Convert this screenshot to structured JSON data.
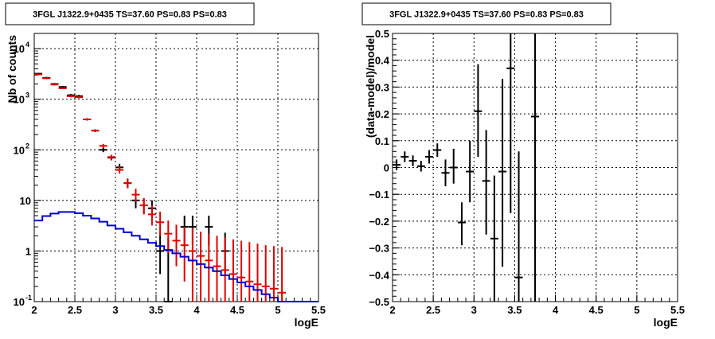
{
  "chart_data": [
    {
      "type": "scatter",
      "title": "3FGL J1322.9+0435 TS=37.60 PS=0.83 PS=0.83",
      "xlabel": "logE",
      "ylabel": "Nb of counts",
      "xlim": [
        2,
        5.5
      ],
      "ylim": [
        0.1,
        20000
      ],
      "yscale": "log",
      "grid": true,
      "xticks": [
        {
          "v": 2,
          "label": "2"
        },
        {
          "v": 2.5,
          "label": "2.5"
        },
        {
          "v": 3,
          "label": "3"
        },
        {
          "v": 3.5,
          "label": "3.5"
        },
        {
          "v": 4,
          "label": "4"
        },
        {
          "v": 4.5,
          "label": "4.5"
        },
        {
          "v": 5,
          "label": "5"
        },
        {
          "v": 5.5,
          "label": "5.5"
        }
      ],
      "yticks": [
        {
          "v": 0.1,
          "label": "10",
          "exp": "-1"
        },
        {
          "v": 1,
          "label": "1",
          "exp": ""
        },
        {
          "v": 10,
          "label": "10",
          "exp": ""
        },
        {
          "v": 100,
          "label": "10",
          "exp": "2"
        },
        {
          "v": 1000,
          "label": "10",
          "exp": "3"
        },
        {
          "v": 10000,
          "label": "10",
          "exp": "4"
        }
      ],
      "series": [
        {
          "color": "#000000",
          "kind": "errorbars",
          "points": [
            {
              "x": 2.05,
              "y": 3200,
              "lo": 3090,
              "hi": 3310
            },
            {
              "x": 2.15,
              "y": 2650,
              "lo": 2550,
              "hi": 2750
            },
            {
              "x": 2.25,
              "y": 2000,
              "lo": 1910,
              "hi": 2090
            },
            {
              "x": 2.35,
              "y": 1750,
              "lo": 1670,
              "hi": 1830
            },
            {
              "x": 2.45,
              "y": 1200,
              "lo": 1130,
              "hi": 1270
            },
            {
              "x": 2.55,
              "y": 1150,
              "lo": 1080,
              "hi": 1220
            },
            {
              "x": 2.65,
              "y": 400,
              "lo": 380,
              "hi": 420
            },
            {
              "x": 2.75,
              "y": 240,
              "lo": 225,
              "hi": 255
            },
            {
              "x": 2.85,
              "y": 100,
              "lo": 90,
              "hi": 110
            },
            {
              "x": 2.95,
              "y": 70,
              "lo": 62,
              "hi": 78
            },
            {
              "x": 3.05,
              "y": 45,
              "lo": 38,
              "hi": 53
            },
            {
              "x": 3.15,
              "y": 22,
              "lo": 17.5,
              "hi": 27
            },
            {
              "x": 3.25,
              "y": 10,
              "lo": 7,
              "hi": 13.5
            },
            {
              "x": 3.35,
              "y": 8,
              "lo": 5.5,
              "hi": 11
            },
            {
              "x": 3.45,
              "y": 7,
              "lo": 4.5,
              "hi": 10
            },
            {
              "x": 3.55,
              "y": 1,
              "lo": 0.35,
              "hi": 2.3
            },
            {
              "x": 3.65,
              "y": 0.1,
              "lo": 0.1,
              "hi": 1.8
            },
            {
              "x": 3.85,
              "y": 3,
              "lo": 1.3,
              "hi": 5
            },
            {
              "x": 3.95,
              "y": 3,
              "lo": 1.3,
              "hi": 5
            },
            {
              "x": 4.15,
              "y": 3,
              "lo": 1.3,
              "hi": 5
            },
            {
              "x": 4.35,
              "y": 1,
              "lo": 0.35,
              "hi": 2.3
            }
          ]
        },
        {
          "color": "#e00000",
          "kind": "errorbars",
          "points": [
            {
              "x": 2.05,
              "y": 3100,
              "lo": 3000,
              "hi": 3200
            },
            {
              "x": 2.15,
              "y": 2600,
              "lo": 2500,
              "hi": 2700
            },
            {
              "x": 2.25,
              "y": 1950,
              "lo": 1870,
              "hi": 2030
            },
            {
              "x": 2.35,
              "y": 1650,
              "lo": 1580,
              "hi": 1720
            },
            {
              "x": 2.45,
              "y": 1150,
              "lo": 1090,
              "hi": 1210
            },
            {
              "x": 2.55,
              "y": 1100,
              "lo": 1040,
              "hi": 1160
            },
            {
              "x": 2.65,
              "y": 400,
              "lo": 380,
              "hi": 420
            },
            {
              "x": 2.75,
              "y": 240,
              "lo": 226,
              "hi": 254
            },
            {
              "x": 2.85,
              "y": 120,
              "lo": 109,
              "hi": 131
            },
            {
              "x": 2.95,
              "y": 72,
              "lo": 64,
              "hi": 80
            },
            {
              "x": 3.05,
              "y": 40,
              "lo": 34,
              "hi": 47
            },
            {
              "x": 3.15,
              "y": 22,
              "lo": 17.5,
              "hi": 27
            },
            {
              "x": 3.25,
              "y": 13,
              "lo": 9.5,
              "hi": 17
            },
            {
              "x": 3.35,
              "y": 8,
              "lo": 5.3,
              "hi": 11
            },
            {
              "x": 3.45,
              "y": 5.3,
              "lo": 3.2,
              "hi": 8
            },
            {
              "x": 3.55,
              "y": 3.7,
              "lo": 2.0,
              "hi": 6
            },
            {
              "x": 3.65,
              "y": 2.2,
              "lo": 0.9,
              "hi": 4
            },
            {
              "x": 3.75,
              "y": 1.6,
              "lo": 0.5,
              "hi": 3.3
            },
            {
              "x": 3.85,
              "y": 1.3,
              "lo": 0.25,
              "hi": 3
            },
            {
              "x": 3.95,
              "y": 1.0,
              "lo": 0.1,
              "hi": 2.8
            },
            {
              "x": 4.05,
              "y": 0.8,
              "lo": 0.1,
              "hi": 2.4
            },
            {
              "x": 4.15,
              "y": 0.65,
              "lo": 0.1,
              "hi": 2.2
            },
            {
              "x": 4.25,
              "y": 0.5,
              "lo": 0.1,
              "hi": 2.0
            },
            {
              "x": 4.35,
              "y": 0.42,
              "lo": 0.1,
              "hi": 1.85
            },
            {
              "x": 4.45,
              "y": 0.35,
              "lo": 0.1,
              "hi": 1.7
            },
            {
              "x": 4.55,
              "y": 0.3,
              "lo": 0.1,
              "hi": 1.6
            },
            {
              "x": 4.65,
              "y": 0.25,
              "lo": 0.1,
              "hi": 1.5
            },
            {
              "x": 4.75,
              "y": 0.22,
              "lo": 0.1,
              "hi": 1.4
            },
            {
              "x": 4.85,
              "y": 0.2,
              "lo": 0.1,
              "hi": 1.3
            },
            {
              "x": 4.95,
              "y": 0.18,
              "lo": 0.1,
              "hi": 1.25
            },
            {
              "x": 5.05,
              "y": 0.15,
              "lo": 0.1,
              "hi": 1.2
            }
          ]
        },
        {
          "color": "#0000cc",
          "kind": "step",
          "edges": [
            2.0,
            2.1,
            2.2,
            2.3,
            2.4,
            2.5,
            2.6,
            2.7,
            2.8,
            2.9,
            3.0,
            3.1,
            3.2,
            3.3,
            3.4,
            3.5,
            3.6,
            3.7,
            3.8,
            3.9,
            4.0,
            4.1,
            4.2,
            4.3,
            4.4,
            4.5,
            4.6,
            4.7,
            4.8,
            4.9,
            5.0,
            5.1,
            5.2,
            5.3,
            5.4,
            5.5
          ],
          "values": [
            4.0,
            4.9,
            5.5,
            5.9,
            5.9,
            5.6,
            5.0,
            4.4,
            3.8,
            3.2,
            2.75,
            2.35,
            2.0,
            1.7,
            1.45,
            1.25,
            1.05,
            0.9,
            0.77,
            0.65,
            0.55,
            0.47,
            0.4,
            0.33,
            0.28,
            0.24,
            0.2,
            0.17,
            0.14,
            0.12,
            0.1,
            0.1,
            0.1,
            0.1,
            0.1
          ]
        }
      ]
    },
    {
      "type": "scatter",
      "title": "3FGL J1322.9+0435 TS=37.60 PS=0.83 PS=0.83",
      "xlabel": "logE",
      "ylabel": "(data-model)/model",
      "xlim": [
        2,
        5.5
      ],
      "ylim": [
        -0.5,
        0.5
      ],
      "grid": true,
      "xticks": [
        {
          "v": 2,
          "label": "2"
        },
        {
          "v": 2.5,
          "label": "2.5"
        },
        {
          "v": 3,
          "label": "3"
        },
        {
          "v": 3.5,
          "label": "3.5"
        },
        {
          "v": 4,
          "label": "4"
        },
        {
          "v": 4.5,
          "label": "4.5"
        },
        {
          "v": 5,
          "label": "5"
        },
        {
          "v": 5.5,
          "label": "5.5"
        }
      ],
      "yticks": [
        {
          "v": -0.5,
          "label": "−0.5"
        },
        {
          "v": -0.4,
          "label": "−0.4"
        },
        {
          "v": -0.3,
          "label": "−0.3"
        },
        {
          "v": -0.2,
          "label": "−0.2"
        },
        {
          "v": -0.1,
          "label": "−0.1"
        },
        {
          "v": 0,
          "label": "0"
        },
        {
          "v": 0.1,
          "label": "0.1"
        },
        {
          "v": 0.2,
          "label": "0.2"
        },
        {
          "v": 0.3,
          "label": "0.3"
        },
        {
          "v": 0.4,
          "label": "0.4"
        },
        {
          "v": 0.5,
          "label": "0.5"
        }
      ],
      "series": [
        {
          "color": "#000000",
          "kind": "errorbars",
          "points": [
            {
              "x": 2.05,
              "y": 0.01,
              "lo": -0.01,
              "hi": 0.03
            },
            {
              "x": 2.15,
              "y": 0.04,
              "lo": 0.02,
              "hi": 0.06
            },
            {
              "x": 2.25,
              "y": 0.025,
              "lo": 0.005,
              "hi": 0.045
            },
            {
              "x": 2.35,
              "y": 0.005,
              "lo": -0.015,
              "hi": 0.025
            },
            {
              "x": 2.45,
              "y": 0.04,
              "lo": 0.015,
              "hi": 0.065
            },
            {
              "x": 2.55,
              "y": 0.065,
              "lo": 0.04,
              "hi": 0.09
            },
            {
              "x": 2.65,
              "y": -0.02,
              "lo": -0.07,
              "hi": 0.03
            },
            {
              "x": 2.75,
              "y": 0.0,
              "lo": -0.06,
              "hi": 0.07
            },
            {
              "x": 2.85,
              "y": -0.205,
              "lo": -0.29,
              "hi": -0.13
            },
            {
              "x": 2.95,
              "y": -0.015,
              "lo": -0.13,
              "hi": 0.1
            },
            {
              "x": 3.05,
              "y": 0.21,
              "lo": 0.04,
              "hi": 0.385
            },
            {
              "x": 3.15,
              "y": -0.05,
              "lo": -0.25,
              "hi": 0.14
            },
            {
              "x": 3.25,
              "y": -0.265,
              "lo": -0.5,
              "hi": -0.03
            },
            {
              "x": 3.35,
              "y": -0.015,
              "lo": -0.37,
              "hi": 0.33
            },
            {
              "x": 3.45,
              "y": 0.37,
              "lo": -0.17,
              "hi": 0.5
            },
            {
              "x": 3.55,
              "y": -0.41,
              "lo": -0.5,
              "hi": 0.06
            },
            {
              "x": 3.75,
              "y": 0.19,
              "lo": -0.5,
              "hi": 0.5
            }
          ]
        }
      ]
    }
  ]
}
